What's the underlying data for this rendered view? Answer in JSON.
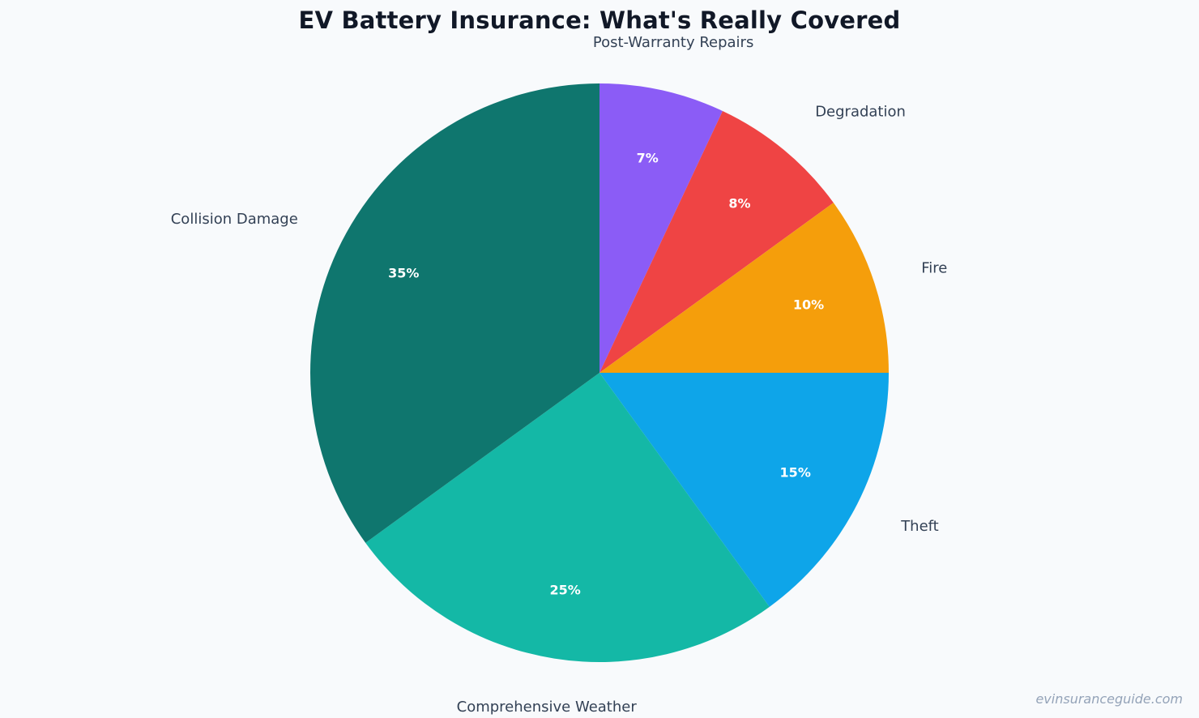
{
  "chart_data": {
    "type": "pie",
    "title": "EV Battery Insurance: What's Really Covered",
    "categories": [
      "Post-Warranty Repairs",
      "Degradation",
      "Fire",
      "Theft",
      "Comprehensive Weather",
      "Collision Damage"
    ],
    "values": [
      7,
      8,
      10,
      15,
      25,
      35
    ],
    "value_labels": [
      "7%",
      "8%",
      "10%",
      "15%",
      "25%",
      "35%"
    ],
    "colors": [
      "#8b5cf6",
      "#ef4444",
      "#f59e0b",
      "#0ea5e9",
      "#14b8a6",
      "#0f766e"
    ],
    "start_angle": "12 o'clock",
    "direction": "clockwise",
    "legend": "none"
  },
  "watermark": "evinsuranceguide.com",
  "colors": {
    "background": "#f8fafc",
    "title": "#111827",
    "category_label": "#334155",
    "value_label": "#ffffff",
    "watermark": "#94a3b8"
  }
}
